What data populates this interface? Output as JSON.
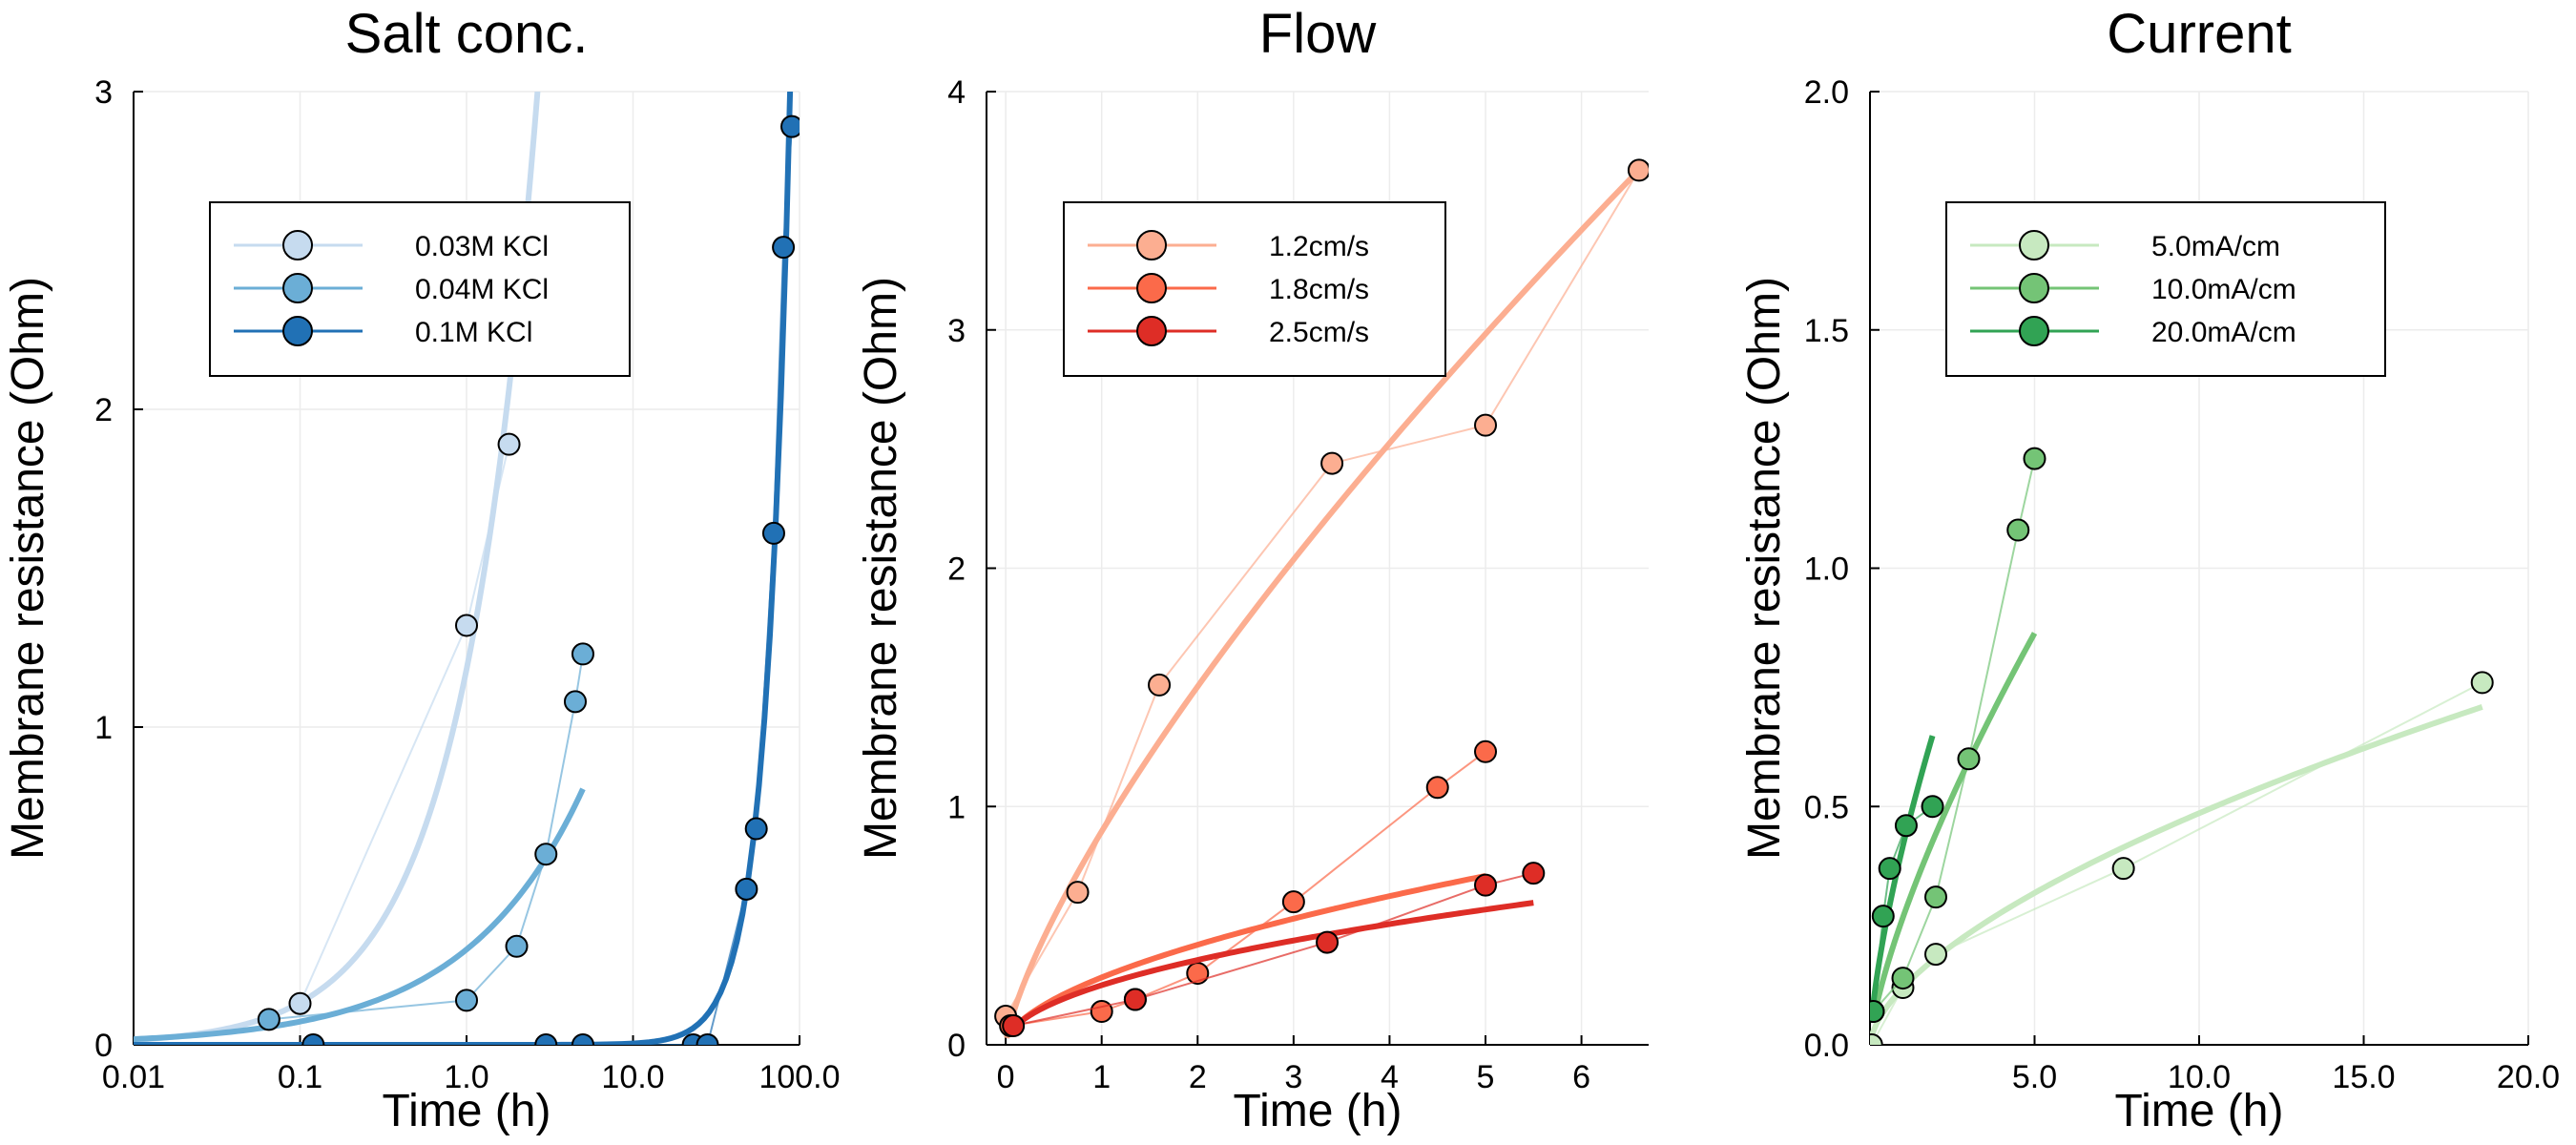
{
  "chart_data": [
    {
      "type": "scatter",
      "title": "Salt conc.",
      "xlabel": "Time (h)",
      "ylabel": "Membrane resistance (Ohm)",
      "xscale": "log",
      "xlim": [
        0.01,
        100
      ],
      "ylim": [
        0,
        3
      ],
      "xticks": [
        0.01,
        0.1,
        1,
        10,
        100
      ],
      "xtick_labels": [
        "0.01",
        "0.1",
        "1.0",
        "10.0",
        "100.0"
      ],
      "yticks": [
        0,
        1,
        2,
        3
      ],
      "ytick_labels": [
        "0",
        "1",
        "2",
        "3"
      ],
      "grid": true,
      "legend_position": "top-left",
      "series": [
        {
          "name": "0.03M KCl",
          "color": "#c6dbef",
          "x": [
            0.1,
            1.0,
            1.8
          ],
          "y": [
            0.13,
            1.32,
            1.89
          ],
          "fit_end": 5.0
        },
        {
          "name": "0.04M KCl",
          "color": "#6baed6",
          "x": [
            0.065,
            1.0,
            2.0,
            3.0,
            4.5,
            5.0
          ],
          "y": [
            0.08,
            0.14,
            0.31,
            0.6,
            1.08,
            1.23
          ],
          "fit_end": 5.0
        },
        {
          "name": "0.1M KCl",
          "color": "#2171b5",
          "x": [
            0.12,
            3.0,
            5.0,
            23.0,
            28.0,
            48.0,
            55.0,
            70.0,
            80.0,
            90.0
          ],
          "y": [
            0.0,
            0.0,
            0.0,
            0.0,
            0.0,
            0.49,
            0.68,
            1.61,
            2.51,
            2.89
          ],
          "fit_end": 90.0
        }
      ]
    },
    {
      "type": "scatter",
      "title": "Flow",
      "xlabel": "Time (h)",
      "ylabel": "Membrane resistance (Ohm)",
      "xlim": [
        -0.2,
        6.7
      ],
      "ylim": [
        0,
        4
      ],
      "xticks": [
        0,
        1,
        2,
        3,
        4,
        5,
        6
      ],
      "xtick_labels": [
        "0",
        "1",
        "2",
        "3",
        "4",
        "5",
        "6"
      ],
      "yticks": [
        0,
        1,
        2,
        3,
        4
      ],
      "ytick_labels": [
        "0",
        "1",
        "2",
        "3",
        "4"
      ],
      "grid": true,
      "legend_position": "top-left",
      "series": [
        {
          "name": "1.2cm/s",
          "color": "#fcae91",
          "x": [
            0.0,
            0.75,
            1.6,
            3.4,
            5.0,
            6.6
          ],
          "y": [
            0.12,
            0.64,
            1.51,
            2.44,
            2.6,
            3.67
          ],
          "fit_end": 6.6
        },
        {
          "name": "1.8cm/s",
          "color": "#fb6a4a",
          "x": [
            0.05,
            1.0,
            1.35,
            2.0,
            3.0,
            4.5,
            5.0
          ],
          "y": [
            0.08,
            0.14,
            0.19,
            0.3,
            0.6,
            1.08,
            1.23
          ],
          "fit_end": 5.0
        },
        {
          "name": "2.5cm/s",
          "color": "#de2d26",
          "x": [
            0.08,
            1.35,
            3.35,
            5.0,
            5.5
          ],
          "y": [
            0.08,
            0.19,
            0.43,
            0.67,
            0.72
          ],
          "fit_end": 5.5
        }
      ]
    },
    {
      "type": "scatter",
      "title": "Current",
      "xlabel": "Time (h)",
      "ylabel": "Membrane resistance (Ohm)",
      "xlim": [
        0,
        20
      ],
      "ylim": [
        0,
        2
      ],
      "xticks": [
        5,
        10,
        15,
        20
      ],
      "xtick_labels": [
        "5.0",
        "10.0",
        "15.0",
        "20.0"
      ],
      "yticks": [
        0,
        0.5,
        1,
        1.5,
        2
      ],
      "ytick_labels": [
        "0.0",
        "0.5",
        "1.0",
        "1.5",
        "2.0"
      ],
      "grid": true,
      "legend_position": "top-left",
      "series": [
        {
          "name": "5.0mA/cm",
          "color": "#c7e9c0",
          "x": [
            0.05,
            1.0,
            2.0,
            7.7,
            18.6
          ],
          "y": [
            0.0,
            0.12,
            0.19,
            0.37,
            0.76
          ],
          "fit_end": 18.6
        },
        {
          "name": "10.0mA/cm",
          "color": "#74c476",
          "x": [
            0.1,
            1.0,
            2.0,
            3.0,
            4.5,
            5.0
          ],
          "y": [
            0.07,
            0.14,
            0.31,
            0.6,
            1.08,
            1.23
          ],
          "fit_end": 5.0
        },
        {
          "name": "20.0mA/cm",
          "color": "#31a354",
          "x": [
            0.1,
            0.4,
            0.6,
            1.1,
            1.9
          ],
          "y": [
            0.07,
            0.27,
            0.37,
            0.46,
            0.5
          ],
          "fit_end": 1.9
        }
      ]
    }
  ]
}
